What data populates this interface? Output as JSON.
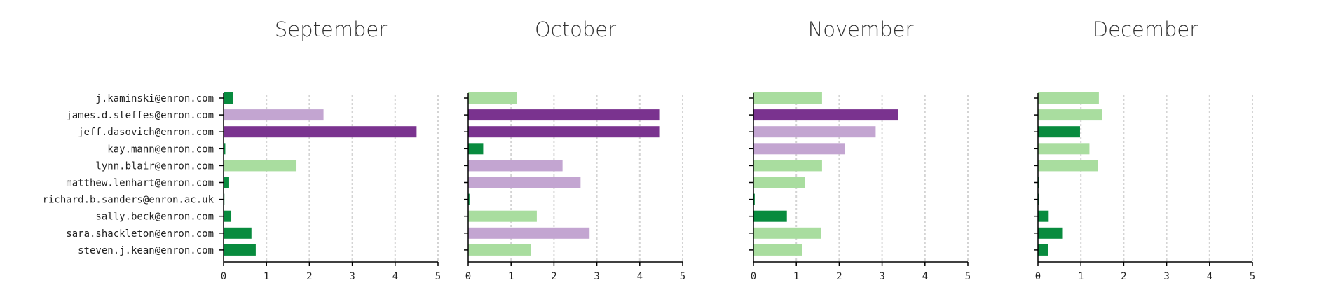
{
  "colors": {
    "dark_green": "#088b3e",
    "light_green": "#a9dd9f",
    "light_purple": "#c3a5d1",
    "dark_purple": "#7a338f"
  },
  "chart_data": {
    "type": "bar",
    "orientation": "horizontal",
    "categories": [
      "j.kaminski@enron.com",
      "james.d.steffes@enron.com",
      "jeff.dasovich@enron.com",
      "kay.mann@enron.com",
      "lynn.blair@enron.com",
      "matthew.lenhart@enron.com",
      "richard.b.sanders@enron.ac.uk",
      "sally.beck@enron.com",
      "sara.shackleton@enron.com",
      "steven.j.kean@enron.com"
    ],
    "xlim": [
      0,
      5
    ],
    "xticks": [
      "0",
      "1",
      "2",
      "3",
      "4",
      "5"
    ],
    "grid": "vertical dotted",
    "panels": [
      {
        "title": "September",
        "values": [
          0.22,
          2.33,
          4.5,
          0.04,
          1.7,
          0.13,
          0.02,
          0.18,
          0.65,
          0.75
        ],
        "colors": [
          "dark_green",
          "light_purple",
          "dark_purple",
          "dark_green",
          "light_green",
          "dark_green",
          "dark_green",
          "dark_green",
          "dark_green",
          "dark_green"
        ]
      },
      {
        "title": "October",
        "values": [
          1.13,
          4.47,
          4.47,
          0.35,
          2.2,
          2.62,
          0.03,
          1.6,
          2.83,
          1.47
        ],
        "colors": [
          "light_green",
          "dark_purple",
          "dark_purple",
          "dark_green",
          "light_purple",
          "light_purple",
          "dark_green",
          "light_green",
          "light_purple",
          "light_green"
        ]
      },
      {
        "title": "November",
        "values": [
          1.6,
          3.37,
          2.85,
          2.13,
          1.6,
          1.2,
          0.03,
          0.78,
          1.57,
          1.13
        ],
        "colors": [
          "light_green",
          "dark_purple",
          "light_purple",
          "light_purple",
          "light_green",
          "light_green",
          "dark_green",
          "dark_green",
          "light_green",
          "light_green"
        ]
      },
      {
        "title": "December",
        "values": [
          1.42,
          1.5,
          0.98,
          1.2,
          1.4,
          0.02,
          0.02,
          0.25,
          0.58,
          0.24
        ],
        "colors": [
          "light_green",
          "light_green",
          "dark_green",
          "light_green",
          "light_green",
          "dark_green",
          "dark_green",
          "dark_green",
          "dark_green",
          "dark_green"
        ]
      }
    ]
  }
}
